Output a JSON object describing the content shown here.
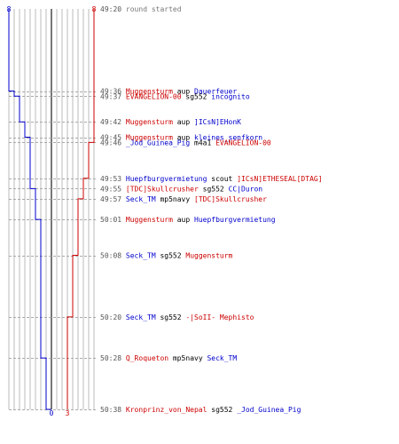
{
  "colors": {
    "team_blue": "#0000cc",
    "team_red": "#cc0000",
    "time": "#555555",
    "text": "#000000",
    "round_started": "#777777",
    "grid": "#bbbbbb",
    "grid_dash": "#aaaaaa",
    "center_line": "#777777"
  },
  "chart_data": {
    "type": "line",
    "title": "",
    "xlabel": "",
    "ylabel": "",
    "series": [
      {
        "name": "blue",
        "start": 8,
        "end": 0,
        "color": "#0000cc"
      },
      {
        "name": "red",
        "start": 8,
        "end": 3,
        "color": "#cc0000"
      }
    ],
    "start_labels": {
      "blue": "8",
      "red": "8"
    },
    "end_labels": {
      "blue": "0",
      "red": "3"
    },
    "events": [
      {
        "time": "49:20",
        "t": 0,
        "kind": "start",
        "text": "round started"
      },
      {
        "time": "49:36",
        "t": 16,
        "killer": "Muggensturm",
        "killer_team": "red",
        "weapon": "aup",
        "victim": "Dauerfeuer",
        "victim_team": "blue"
      },
      {
        "time": "49:37",
        "t": 17,
        "killer": "EVANGELION-00",
        "killer_team": "red",
        "weapon": "sg552",
        "victim": "incognito",
        "victim_team": "blue"
      },
      {
        "time": "49:42",
        "t": 22,
        "killer": "Muggensturm",
        "killer_team": "red",
        "weapon": "aup",
        "victim": "]ICsN]EHonK",
        "victim_team": "blue"
      },
      {
        "time": "49:45",
        "t": 25,
        "killer": "Muggensturm",
        "killer_team": "red",
        "weapon": "aup",
        "victim": "kleines_senfkorn",
        "victim_team": "blue"
      },
      {
        "time": "49:46",
        "t": 26,
        "killer": "_Jod_Guinea_Pig",
        "killer_team": "blue",
        "weapon": "m4a1",
        "victim": "EVANGELION-00",
        "victim_team": "red"
      },
      {
        "time": "49:53",
        "t": 33,
        "killer": "Huepfburgvermietung",
        "killer_team": "blue",
        "weapon": "scout",
        "victim": "]ICsN]ETHESEAL[DTAG]",
        "victim_team": "red"
      },
      {
        "time": "49:55",
        "t": 35,
        "killer": "[TDC]Skullcrusher",
        "killer_team": "red",
        "weapon": "sg552",
        "victim": "CC|Duron",
        "victim_team": "blue"
      },
      {
        "time": "49:57",
        "t": 37,
        "killer": "Seck_TM",
        "killer_team": "blue",
        "weapon": "mp5navy",
        "victim": "[TDC]Skullcrusher",
        "victim_team": "red"
      },
      {
        "time": "50:01",
        "t": 41,
        "killer": "Muggensturm",
        "killer_team": "red",
        "weapon": "aup",
        "victim": "Huepfburgvermietung",
        "victim_team": "blue"
      },
      {
        "time": "50:08",
        "t": 48,
        "killer": "Seck_TM",
        "killer_team": "blue",
        "weapon": "sg552",
        "victim": "Muggensturm",
        "victim_team": "red"
      },
      {
        "time": "50:20",
        "t": 60,
        "killer": "Seck_TM",
        "killer_team": "blue",
        "weapon": "sg552",
        "victim": "-|SoII- Mephisto",
        "victim_team": "red"
      },
      {
        "time": "50:28",
        "t": 68,
        "killer": "Q_Roqueton",
        "killer_team": "red",
        "weapon": "mp5navy",
        "victim": "Seck_TM",
        "victim_team": "blue"
      },
      {
        "time": "50:38",
        "t": 78,
        "killer": "Kronprinz_von_Nepal",
        "killer_team": "red",
        "weapon": "sg552",
        "victim": "_Jod_Guinea_Pig",
        "victim_team": "blue"
      }
    ]
  }
}
